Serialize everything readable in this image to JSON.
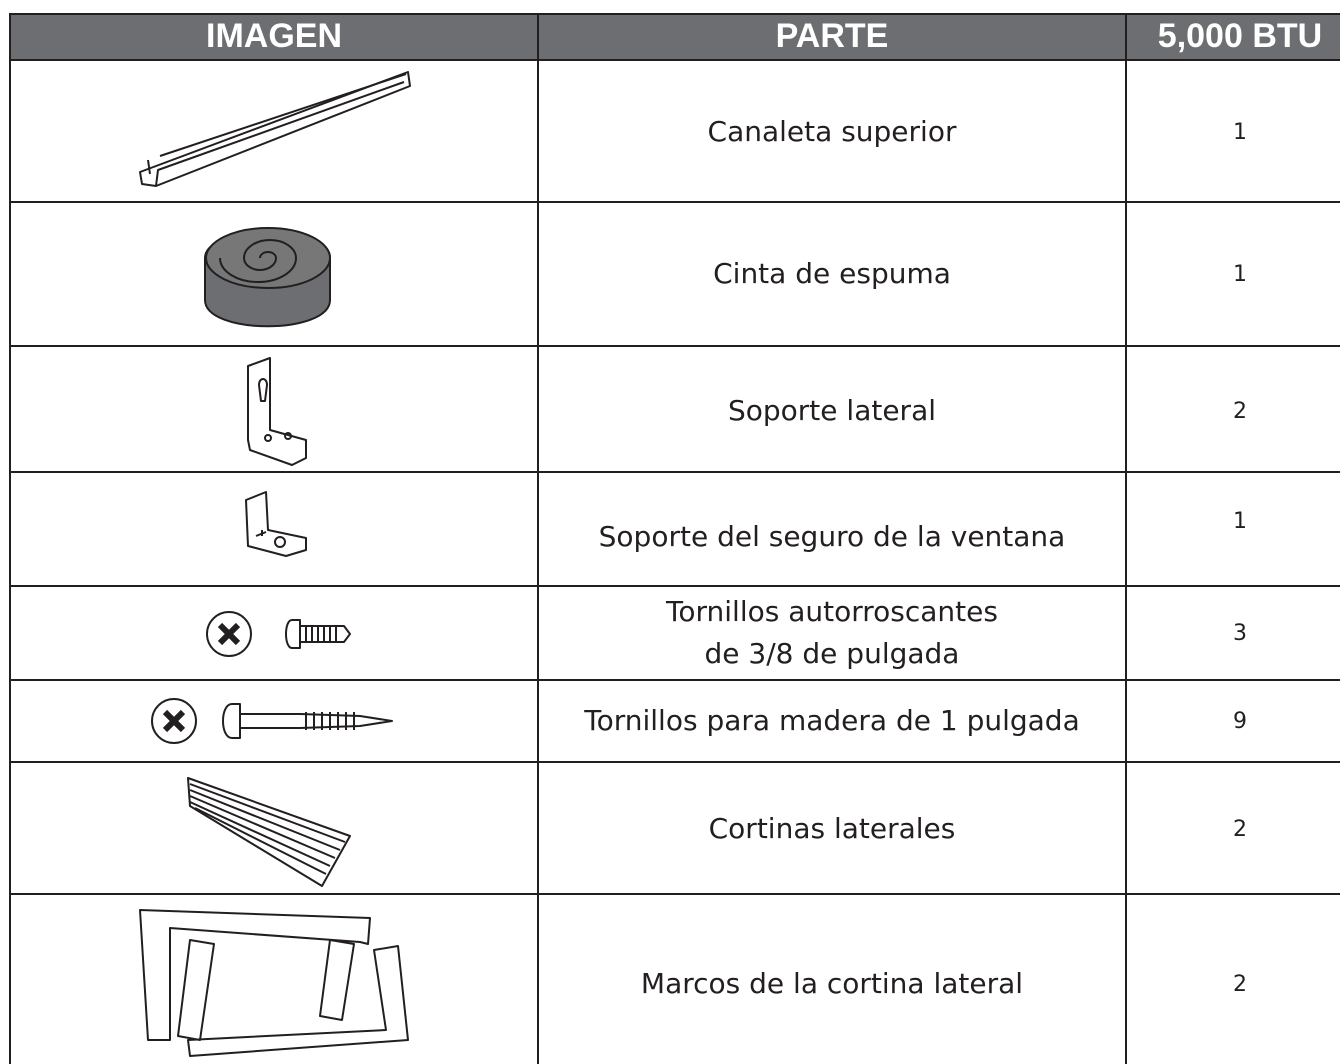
{
  "table": {
    "headers": [
      "IMAGEN",
      "PARTE",
      "5,000 BTU"
    ],
    "rows": [
      {
        "part": "Canaleta superior",
        "quantity": 1
      },
      {
        "part": "Cinta de espuma",
        "quantity": 1
      },
      {
        "part": "Soporte lateral",
        "quantity": 2
      },
      {
        "part": "Soporte del seguro de la ventana",
        "quantity": 1
      },
      {
        "part": [
          "Tornillos autorroscantes",
          "de 3/8  de pulgada"
        ],
        "quantity": 3
      },
      {
        "part": "Tornillos para madera de 1 pulgada",
        "quantity": 9
      },
      {
        "part": "Cortinas laterales",
        "quantity": 2
      },
      {
        "part": "Marcos de la cortina lateral",
        "quantity": 2
      }
    ]
  }
}
